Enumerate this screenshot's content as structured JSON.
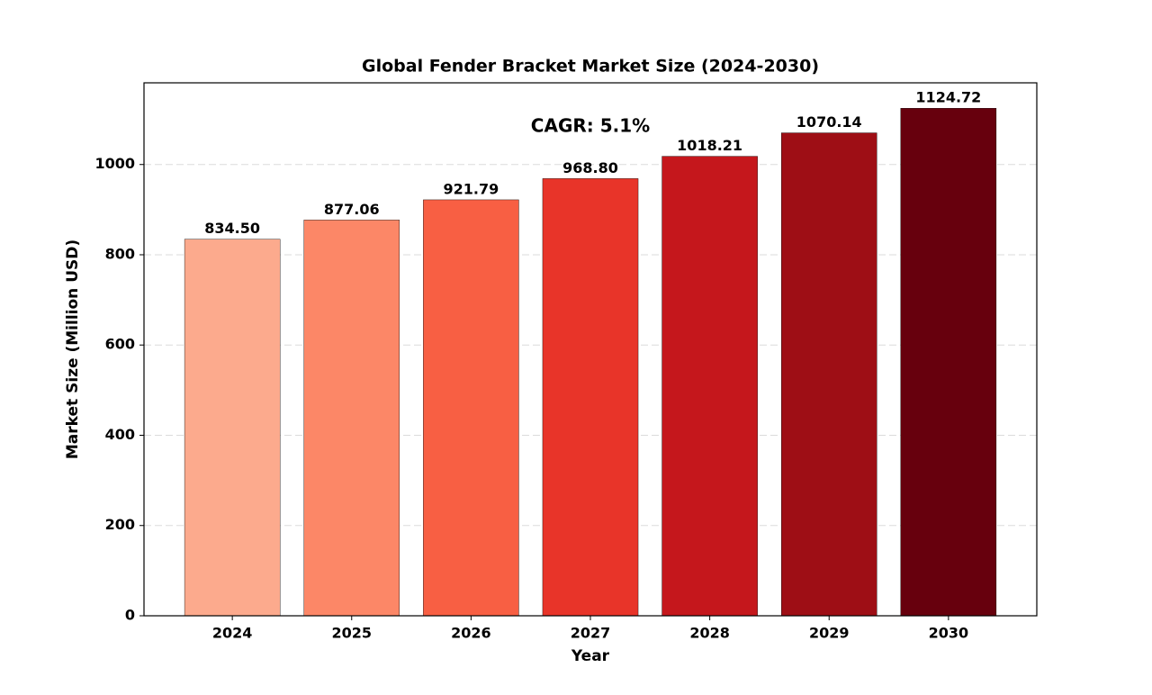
{
  "chart_data": {
    "type": "bar",
    "title": "Global Fender Bracket Market Size (2024-2030)",
    "x_label": "Year",
    "y_label": "Market Size (Million USD)",
    "annotation": "CAGR: 5.1%",
    "categories": [
      "2024",
      "2025",
      "2026",
      "2027",
      "2028",
      "2029",
      "2030"
    ],
    "values": [
      834.5,
      877.06,
      921.79,
      968.8,
      1018.21,
      1070.14,
      1124.72
    ],
    "value_labels": [
      "834.50",
      "877.06",
      "921.79",
      "968.80",
      "1018.21",
      "1070.14",
      "1124.72"
    ],
    "colors": [
      "#fcaa8d",
      "#fc8767",
      "#f85f43",
      "#e83429",
      "#c5171c",
      "#9e0e15",
      "#67000d"
    ],
    "ylim": [
      0,
      1181
    ],
    "yticks": [
      0,
      200,
      400,
      600,
      800,
      1000
    ],
    "grid": true
  }
}
